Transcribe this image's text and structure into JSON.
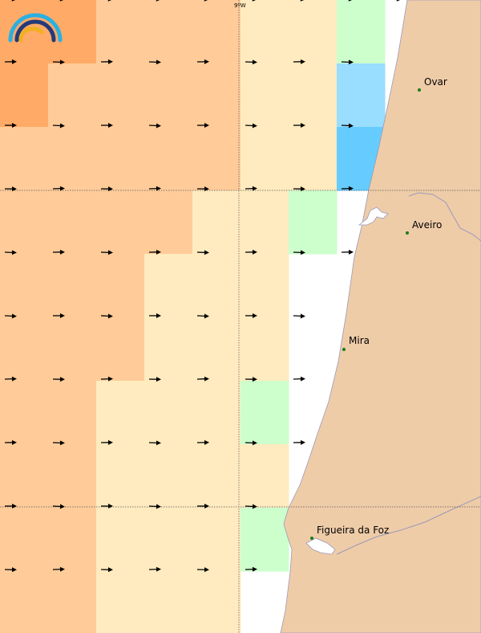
{
  "map": {
    "longitude_label": "9ºW",
    "land_color": "#efcca8",
    "coast_color": "#9a9ab8",
    "sea_color": "#ffffff",
    "grid_line_color": "#555555",
    "arrow_color": "#000000",
    "city_dot_color": "#1a7a1a",
    "logo_icon": "rainbow-arcs-logo-icon",
    "logo_colors": [
      "#2bb0e0",
      "#243a7a",
      "#f0b020"
    ],
    "cell_palette": {
      "dark_orange": "#ffaa66",
      "orange": "#ffcc99",
      "light_yellow": "#ffebbf",
      "light_green": "#ccffcc",
      "light_blue": "#99ddff",
      "blue": "#66ccff"
    },
    "cities": [
      {
        "name": "Ovar"
      },
      {
        "name": "Aveiro"
      },
      {
        "name": "Mira"
      },
      {
        "name": "Figueira da Foz"
      }
    ]
  }
}
